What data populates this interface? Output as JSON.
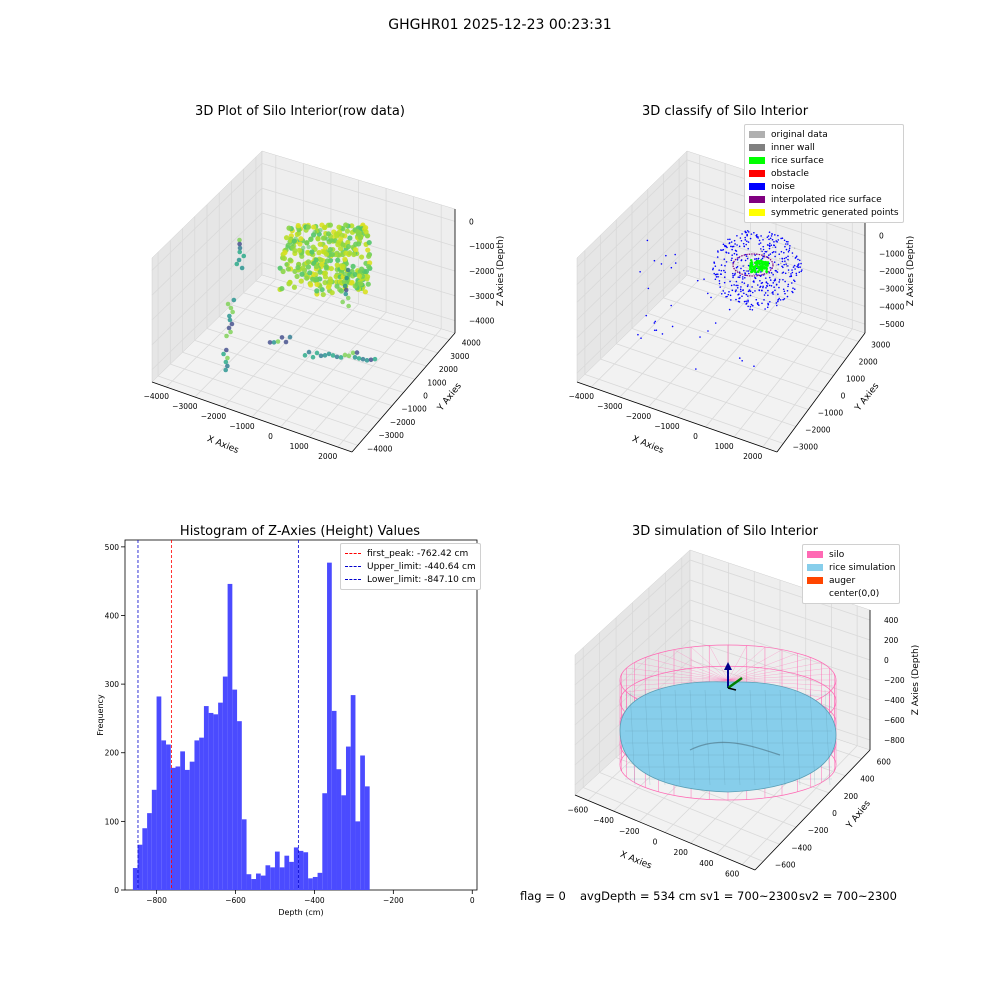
{
  "suptitle": "GHGHR01 2025-12-23 00:23:31",
  "colors": {
    "hist_bar": "#4b4bff",
    "first_peak": "#ff0000",
    "limits": "#0000cc",
    "pane": "#f0f0f0",
    "grid": "#d9d9d9"
  },
  "panels": {
    "raw": {
      "title": "3D Plot of Silo Interior(row data)",
      "xlabel": "X Axies",
      "ylabel": "Y Axies",
      "zlabel": "Z Axies (Depth)",
      "x_ticks": [
        "−4000",
        "−3000",
        "−2000",
        "−1000",
        "0",
        "1000",
        "2000"
      ],
      "y_ticks": [
        "−4000",
        "−3000",
        "−2000",
        "−1000",
        "0",
        "1000",
        "2000",
        "3000",
        "4000"
      ],
      "z_ticks": [
        "0",
        "−1000",
        "−2000",
        "−3000",
        "−4000"
      ]
    },
    "classify": {
      "title": "3D classify of Silo Interior",
      "xlabel": "X Axies",
      "ylabel": "Y Axies",
      "zlabel": "Z Axies (Depth)",
      "x_ticks": [
        "−4000",
        "−3000",
        "−2000",
        "−1000",
        "0",
        "1000",
        "2000"
      ],
      "y_ticks": [
        "−3000",
        "−2000",
        "−1000",
        "0",
        "1000",
        "2000",
        "3000"
      ],
      "z_ticks": [
        "1000",
        "0",
        "−1000",
        "−2000",
        "−3000",
        "−4000",
        "−5000"
      ],
      "legend": [
        {
          "label": "original data",
          "color": "#b0b0b0"
        },
        {
          "label": "inner wall",
          "color": "#808080"
        },
        {
          "label": "rice surface",
          "color": "#00ff00"
        },
        {
          "label": "obstacle",
          "color": "#ff0000"
        },
        {
          "label": "noise",
          "color": "#0000ff"
        },
        {
          "label": "interpolated rice surface",
          "color": "#800080"
        },
        {
          "label": "symmetric generated points",
          "color": "#ffff00"
        }
      ]
    },
    "simulation": {
      "title": "3D simulation of Silo Interior",
      "xlabel": "X Axies",
      "ylabel": "Y Axies",
      "zlabel": "Z Axies (Depth)",
      "x_ticks": [
        "−600",
        "−400",
        "−200",
        "0",
        "200",
        "400",
        "600"
      ],
      "y_ticks": [
        "−600",
        "−400",
        "−200",
        "0",
        "200",
        "400",
        "600"
      ],
      "z_ticks": [
        "400",
        "200",
        "0",
        "−200",
        "−400",
        "−600",
        "−800"
      ],
      "legend": [
        {
          "label": "silo",
          "color": "#ff69b4"
        },
        {
          "label": "rice simulation",
          "color": "#87ceeb"
        },
        {
          "label": "auger",
          "color": "#ff4500"
        },
        {
          "label": "center(0,0)",
          "color": ""
        }
      ]
    }
  },
  "chart_data": {
    "type": "bar",
    "title": "Histogram of Z-Axies (Height) Values",
    "xlabel": "Depth (cm)",
    "ylabel": "Frequency",
    "xlim": [
      -880,
      12
    ],
    "ylim": [
      0,
      510
    ],
    "x_ticks": [
      -800,
      -600,
      -400,
      -200,
      0
    ],
    "y_ticks": [
      0,
      100,
      200,
      300,
      400,
      500
    ],
    "bin_start": -860,
    "bin_width": 12,
    "values": [
      32,
      66,
      90,
      112,
      146,
      282,
      218,
      212,
      178,
      180,
      202,
      175,
      187,
      218,
      222,
      268,
      258,
      256,
      273,
      311,
      446,
      292,
      246,
      103,
      23,
      16,
      24,
      21,
      36,
      33,
      56,
      33,
      50,
      41,
      62,
      57,
      55,
      17,
      19,
      25,
      141,
      477,
      261,
      176,
      138,
      209,
      284,
      100,
      196,
      151
    ],
    "vlines": [
      {
        "label": "first_peak: -762.42 cm",
        "x": -762.42,
        "color": "#ff0000"
      },
      {
        "label": "Upper_limit: -440.64 cm",
        "x": -440.64,
        "color": "#0000cc"
      },
      {
        "label": "Lower_limit: -847.10 cm",
        "x": -847.1,
        "color": "#0000cc"
      }
    ],
    "legend_loc": "upper right"
  },
  "footer": {
    "flag": "flag = 0",
    "avg_depth": "avgDepth = 534 cm",
    "sv1": "sv1 = 700~2300",
    "sv2": "sv2 = 700~2300"
  }
}
